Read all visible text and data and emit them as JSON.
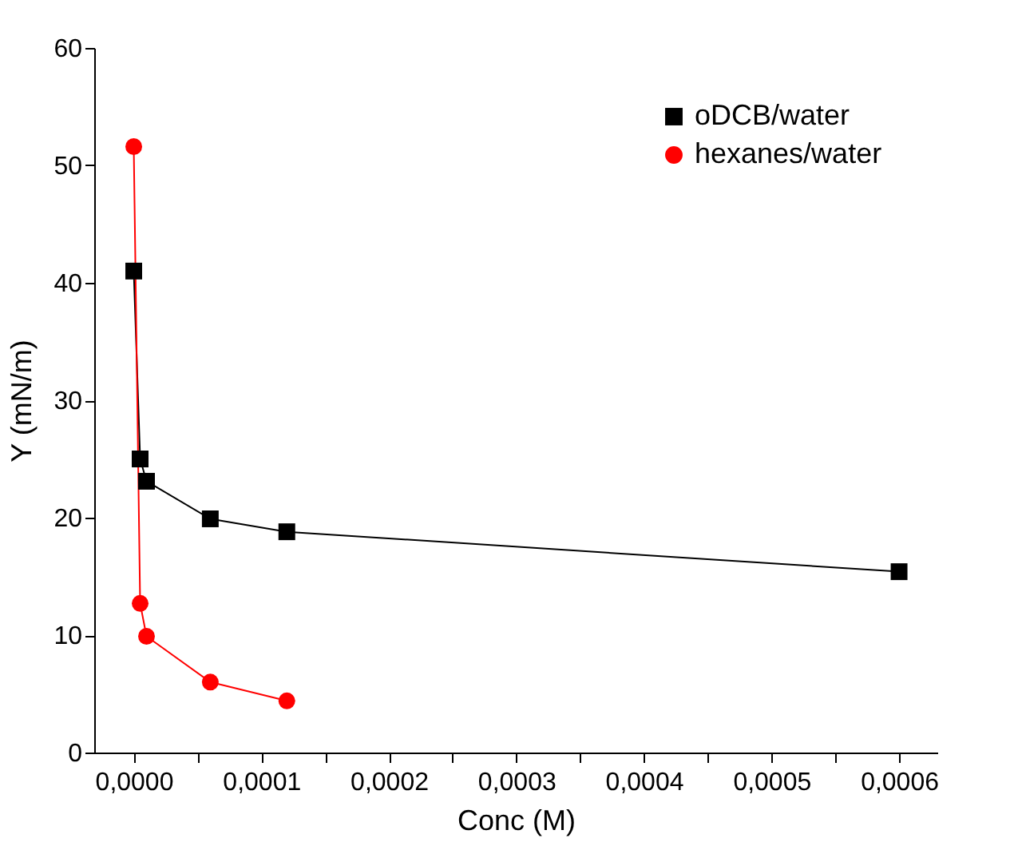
{
  "chart_data": {
    "type": "line",
    "xlabel": "Conc (M)",
    "ylabel": "Y (mN/m)",
    "xlim": [
      -3.1e-05,
      0.00063
    ],
    "ylim": [
      0,
      60
    ],
    "xticks": [
      {
        "value": 0,
        "label": "0,0000"
      },
      {
        "value": 5e-05,
        "label": null
      },
      {
        "value": 0.0001,
        "label": "0,0001"
      },
      {
        "value": 0.00015,
        "label": null
      },
      {
        "value": 0.0002,
        "label": "0,0002"
      },
      {
        "value": 0.00025,
        "label": null
      },
      {
        "value": 0.0003,
        "label": "0,0003"
      },
      {
        "value": 0.00035,
        "label": null
      },
      {
        "value": 0.0004,
        "label": "0,0004"
      },
      {
        "value": 0.00045,
        "label": null
      },
      {
        "value": 0.0005,
        "label": "0,0005"
      },
      {
        "value": 0.00055,
        "label": null
      },
      {
        "value": 0.0006,
        "label": "0,0006"
      }
    ],
    "yticks": [
      0,
      10,
      20,
      30,
      40,
      50,
      60
    ],
    "grid": false,
    "legend": "top right",
    "line_style": "solid",
    "series": [
      {
        "name": "oDCB/water",
        "color": "#000000",
        "marker": "square",
        "x": [
          0,
          5e-06,
          1e-05,
          6e-05,
          0.00012,
          0.0006
        ],
        "values": [
          41,
          25,
          23.1,
          19.9,
          18.8,
          15.4
        ]
      },
      {
        "name": "hexanes/water",
        "color": "#ff0000",
        "marker": "circle",
        "x": [
          0,
          5e-06,
          1e-05,
          6e-05,
          0.00012
        ],
        "values": [
          51.6,
          12.7,
          9.9,
          6.0,
          4.4
        ]
      }
    ]
  }
}
